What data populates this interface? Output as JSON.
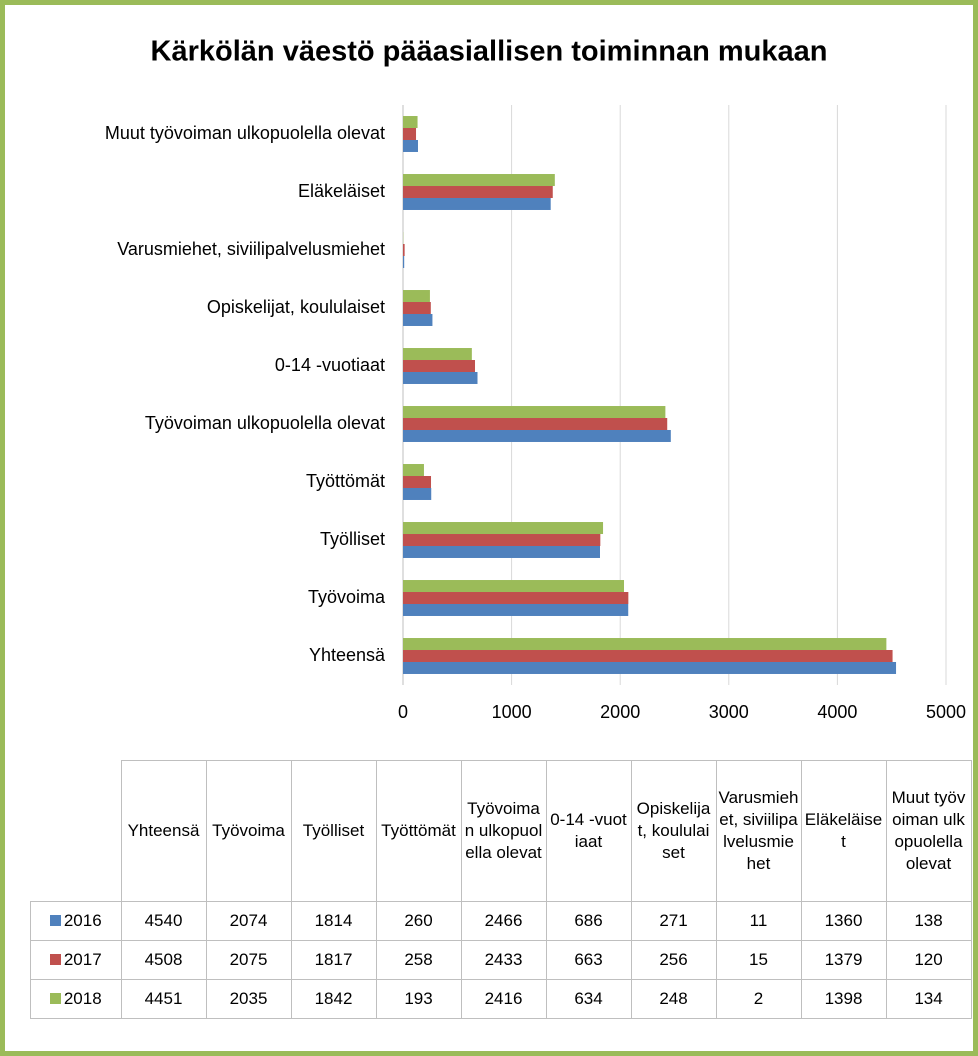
{
  "chart_data": {
    "type": "bar",
    "orientation": "horizontal",
    "title": "Kärkölän väestö pääasiallisen toiminnan mukaan",
    "categories": [
      "Yhteensä",
      "Työvoima",
      "Työlliset",
      "Työttömät",
      "Työvoiman ulkopuolella olevat",
      "0-14 -vuotiaat",
      "Opiskelijat, koululaiset",
      "Varusmiehet, siviilipalvelusmiehet",
      "Eläkeläiset",
      "Muut työvoiman ulkopuolella olevat"
    ],
    "series": [
      {
        "name": "2016",
        "color": "#4f81bd",
        "values": [
          4540,
          2074,
          1814,
          260,
          2466,
          686,
          271,
          11,
          1360,
          138
        ]
      },
      {
        "name": "2017",
        "color": "#c0504d",
        "values": [
          4508,
          2075,
          1817,
          258,
          2433,
          663,
          256,
          15,
          1379,
          120
        ]
      },
      {
        "name": "2018",
        "color": "#9bbb59",
        "values": [
          4451,
          2035,
          1842,
          193,
          2416,
          634,
          248,
          2,
          1398,
          134
        ]
      }
    ],
    "xlim": [
      0,
      5000
    ],
    "xticks": [
      0,
      1000,
      2000,
      3000,
      4000,
      5000
    ],
    "grid": true
  }
}
